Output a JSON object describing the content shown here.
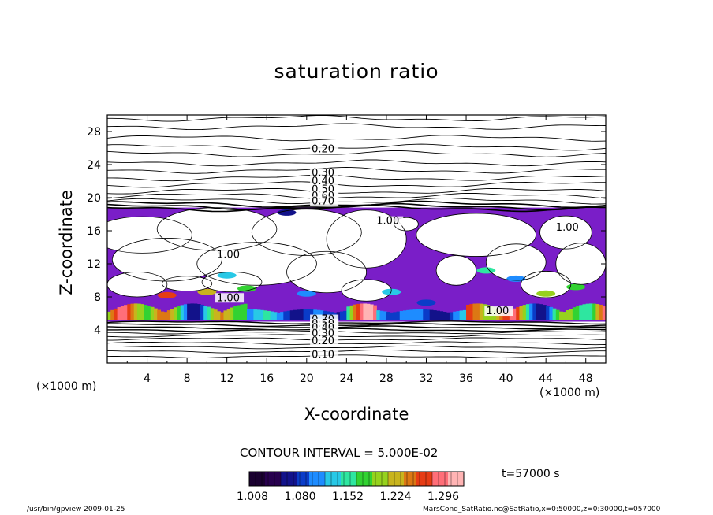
{
  "chart_data": {
    "type": "heatmap",
    "title": "saturation ratio",
    "xlabel": "X-coordinate",
    "ylabel": "Z-coordinate",
    "x_unit_label": "(×1000 m)",
    "xlim": [
      0,
      50
    ],
    "ylim": [
      0,
      30
    ],
    "x_ticks": [
      "4",
      "8",
      "12",
      "16",
      "20",
      "24",
      "28",
      "32",
      "36",
      "40",
      "44",
      "48"
    ],
    "y_ticks": [
      "4",
      "8",
      "12",
      "16",
      "20",
      "24",
      "28"
    ],
    "contour_interval": "CONTOUR INTERVAL = 5.000E-02",
    "time_label": "t=57000 s",
    "contour_labels": [
      "0.20",
      "0.30",
      "0.40",
      "0.50",
      "0.60",
      "0.70",
      "1.00",
      "1.00",
      "1.00",
      "1.00",
      "1.00",
      "0.70",
      "0.50",
      "0.40",
      "0.30",
      "0.20",
      "0.10"
    ],
    "colorbar": {
      "min": 1.008,
      "max": 1.368,
      "tick_labels": [
        "1.008",
        "1.080",
        "1.152",
        "1.224",
        "1.296"
      ],
      "colors": [
        "#1a0030",
        "#28004e",
        "#12128a",
        "#0a3cc8",
        "#1e8cff",
        "#28c8e6",
        "#2ee6a0",
        "#32d232",
        "#96d21e",
        "#c8b41e",
        "#dc7814",
        "#e63c14",
        "#ff6e78",
        "#ffb4b4"
      ]
    },
    "fill_color_low": "#7a1ec8",
    "contour_levels_above_layer": [
      0.2,
      0.3,
      0.4,
      0.5,
      0.6,
      0.7,
      1.0
    ],
    "contour_levels_below_layer": [
      0.7,
      0.5,
      0.4,
      0.3,
      0.2,
      0.1
    ],
    "regions": {
      "saturated_layer_z": [
        5,
        18.8
      ],
      "strong_band_z": [
        5.2,
        7.2
      ]
    }
  },
  "footer": {
    "left": "/usr/bin/gpview  2009-01-25",
    "right": "MarsCond_SatRatio.nc@SatRatio,x=0:50000,z=0:30000,t=057000"
  }
}
